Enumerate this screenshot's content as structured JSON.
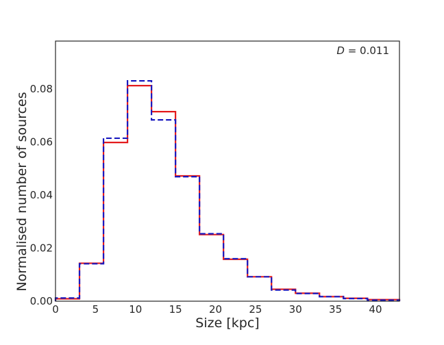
{
  "chart_data": {
    "type": "line",
    "title": "",
    "xlabel": "Size [kpc]",
    "ylabel": "Normalised number of sources",
    "xlim": [
      0,
      43
    ],
    "ylim": [
      0,
      0.098
    ],
    "xticks": [
      0,
      5,
      10,
      15,
      20,
      25,
      30,
      35,
      40
    ],
    "yticks": [
      0.0,
      0.02,
      0.04,
      0.06,
      0.08
    ],
    "ytick_labels": [
      "0.00",
      "0.02",
      "0.04",
      "0.06",
      "0.08"
    ],
    "grid": false,
    "legend": "none",
    "annotation": {
      "variable": "D",
      "text": " = 0.011",
      "position": "top-right"
    },
    "bin_edges": [
      0,
      3,
      6,
      9,
      12,
      15,
      18,
      21,
      24,
      27,
      30,
      33,
      36,
      39,
      43
    ],
    "series": [
      {
        "color": "#e31a1c",
        "style": "solid",
        "values": [
          0.0009,
          0.0143,
          0.0598,
          0.0812,
          0.0714,
          0.0472,
          0.0251,
          0.0158,
          0.0092,
          0.0045,
          0.003,
          0.0017,
          0.0011,
          0.0006
        ]
      },
      {
        "color": "#1a1abf",
        "style": "dashed",
        "values": [
          0.0012,
          0.0141,
          0.0614,
          0.083,
          0.0683,
          0.0469,
          0.0254,
          0.016,
          0.0092,
          0.0042,
          0.0029,
          0.0017,
          0.001,
          0.0004
        ]
      }
    ]
  }
}
